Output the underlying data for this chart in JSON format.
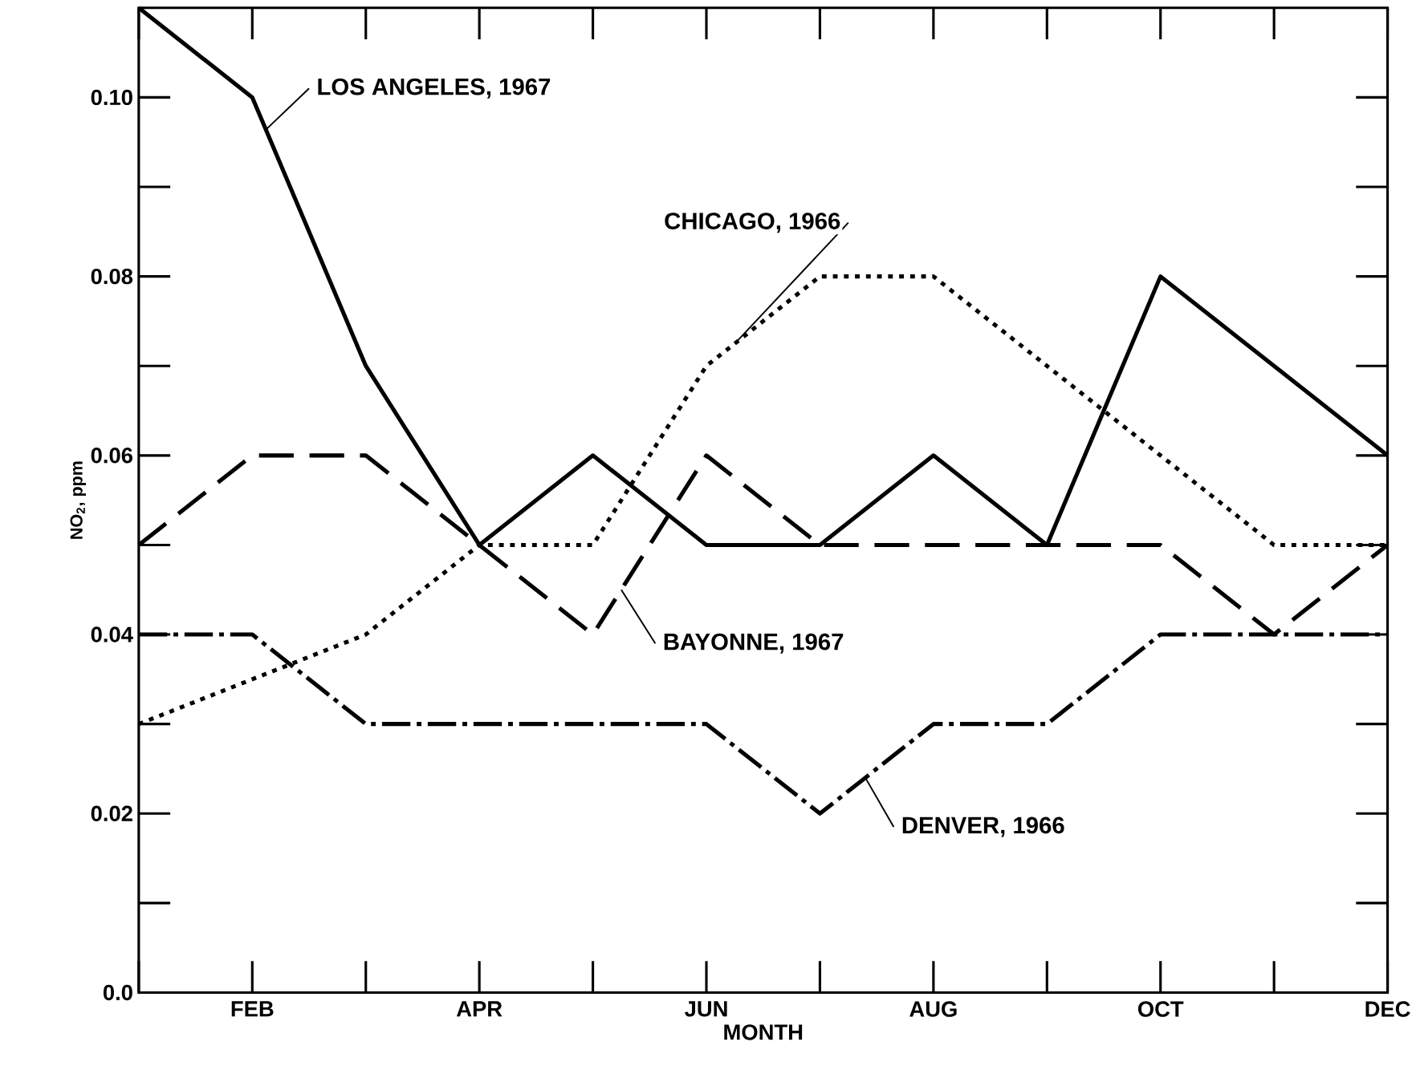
{
  "chart_data": {
    "type": "line",
    "xlabel": "MONTH",
    "ylabel": "NO$_{2}$, ppm",
    "categories": [
      null,
      "FEB",
      null,
      "APR",
      null,
      "JUN",
      null,
      "AUG",
      null,
      "OCT",
      null,
      "DEC"
    ],
    "ylim": [
      0,
      0.11
    ],
    "yticks": [
      {
        "value": 0,
        "label": "0.0"
      },
      {
        "value": 0.02,
        "label": "0.02"
      },
      {
        "value": 0.04,
        "label": "0.04"
      },
      {
        "value": 0.06,
        "label": "0.06"
      },
      {
        "value": 0.08,
        "label": "0.08"
      },
      {
        "value": 0.1,
        "label": "0.10"
      }
    ],
    "grid": false,
    "legend": false,
    "marker": "none",
    "series": [
      {
        "name": "LOS ANGELES, 1967",
        "color": "#000000",
        "line_style": "solid",
        "values": [
          0.11,
          0.1,
          0.07,
          0.05,
          0.06,
          0.05,
          0.05,
          0.06,
          0.05,
          0.08,
          0.07,
          0.06
        ]
      },
      {
        "name": "CHICAGO, 1966",
        "color": "#000000",
        "line_style": "dotted",
        "values": [
          0.03,
          0.035,
          0.04,
          0.05,
          0.05,
          0.07,
          0.08,
          0.08,
          0.07,
          0.06,
          0.05,
          0.05
        ]
      },
      {
        "name": "BAYONNE, 1967",
        "color": "#000000",
        "line_style": "dashed",
        "values": [
          0.05,
          0.06,
          0.06,
          0.05,
          0.04,
          0.06,
          0.05,
          0.05,
          0.05,
          0.05,
          0.04,
          0.05
        ]
      },
      {
        "name": "DENVER, 1966",
        "color": "#000000",
        "line_style": "dashdot",
        "values": [
          0.04,
          0.04,
          0.03,
          0.03,
          0.03,
          0.03,
          0.02,
          0.03,
          0.03,
          0.04,
          0.04,
          0.04
        ]
      }
    ]
  }
}
